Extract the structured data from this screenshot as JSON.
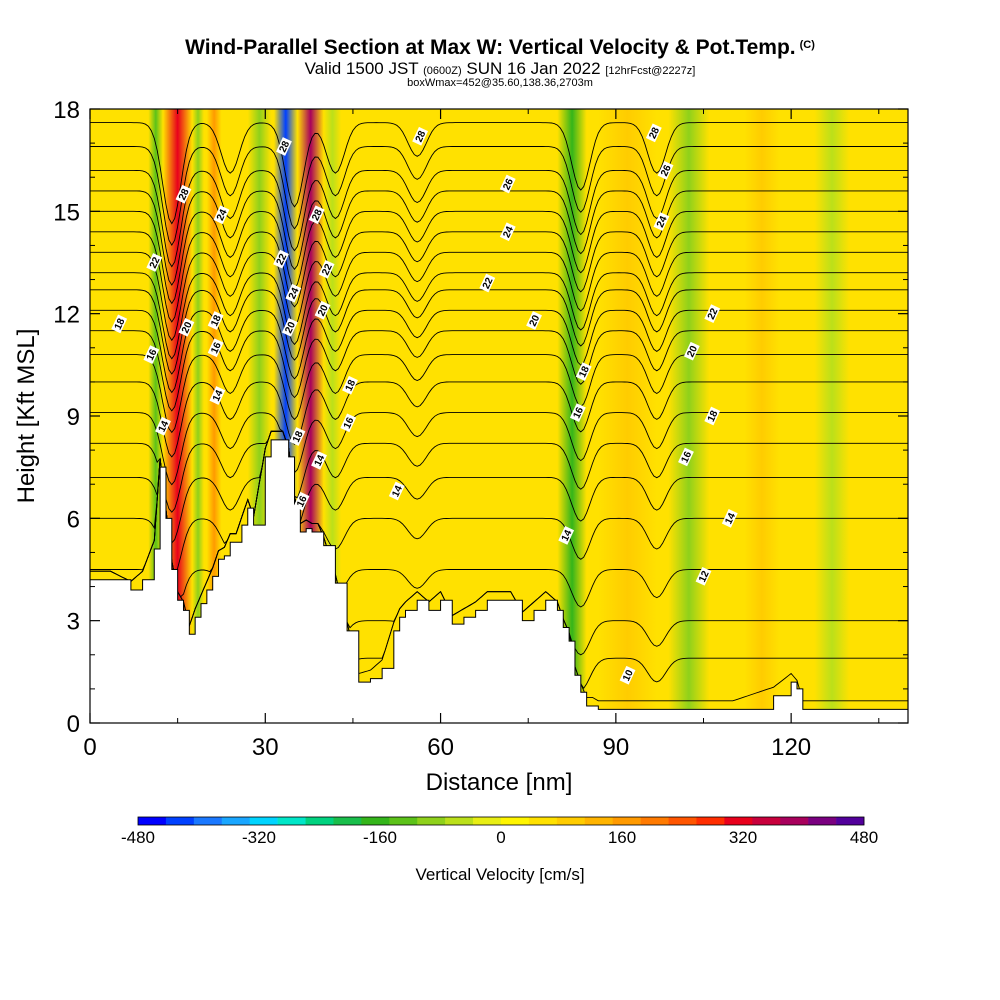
{
  "title": {
    "main": "Wind-Parallel Section at Max W: Vertical Velocity & Pot.Temp.",
    "copyright": "(C)",
    "line2_a": "Valid 1500 JST",
    "line2_b": "(0600Z)",
    "line2_c": "SUN 16 Jan 2022",
    "line2_d": "[12hrFcst@2227z]",
    "line3": "boxWmax=452@35.60,138.36,2703m"
  },
  "chart_data": {
    "type": "heatmap",
    "xlabel": "Distance [nm]",
    "ylabel": "Height [Kft MSL]",
    "xlim": [
      0,
      140
    ],
    "ylim": [
      0,
      18
    ],
    "x_ticks": [
      0,
      30,
      60,
      90,
      120
    ],
    "y_ticks": [
      0,
      3,
      6,
      9,
      12,
      15,
      18
    ],
    "colorbar": {
      "label": "Vertical Velocity [cm/s]",
      "min": -480,
      "max": 480,
      "step": 40,
      "tick_labels": [
        -480,
        -320,
        -160,
        0,
        160,
        320,
        480
      ],
      "colors": [
        "#0000ff",
        "#0040ff",
        "#1a78ff",
        "#19a6ff",
        "#00d4ff",
        "#00e6c8",
        "#00d27f",
        "#19be4b",
        "#34b51a",
        "#5cc219",
        "#8fd11b",
        "#bbe01a",
        "#e8ee14",
        "#fff500",
        "#ffe100",
        "#ffcc00",
        "#ffb400",
        "#ff9a00",
        "#ff7a00",
        "#ff5500",
        "#ff2d00",
        "#e8001c",
        "#c8003c",
        "#a8005c",
        "#7a0080",
        "#52009b"
      ]
    },
    "vertical_velocity_bands": [
      {
        "x_range": [
          10,
          12.5
        ],
        "w_cm_s": -120
      },
      {
        "x_range": [
          12.5,
          17.5
        ],
        "w_cm_s": 320
      },
      {
        "x_range": [
          17.5,
          19.5
        ],
        "w_cm_s": -100
      },
      {
        "x_range": [
          20,
          22.5
        ],
        "w_cm_s": 180
      },
      {
        "x_range": [
          27,
          31
        ],
        "w_cm_s": -100
      },
      {
        "x_range": [
          31.5,
          35.5
        ],
        "w_cm_s": -440
      },
      {
        "x_range": [
          35.5,
          40
        ],
        "w_cm_s": 380
      },
      {
        "x_range": [
          40,
          43
        ],
        "w_cm_s": -60
      },
      {
        "x_range": [
          80,
          85
        ],
        "w_cm_s": -150
      },
      {
        "x_range": [
          87,
          97
        ],
        "w_cm_s": 100
      },
      {
        "x_range": [
          99,
          106
        ],
        "w_cm_s": -80
      },
      {
        "x_range": [
          112,
          118
        ],
        "w_cm_s": 80
      },
      {
        "x_range": [
          124,
          130
        ],
        "w_cm_s": -40
      }
    ],
    "terrain_kft": {
      "x": [
        0,
        3.5,
        7,
        9,
        11,
        12,
        13,
        14,
        15,
        16,
        17,
        18,
        19,
        20,
        21,
        22,
        23,
        24,
        25,
        26,
        27,
        28,
        30,
        31,
        32,
        33,
        34,
        35,
        36,
        37,
        38,
        39,
        40,
        42,
        44,
        46,
        48,
        50,
        52,
        53,
        54,
        56,
        58,
        60,
        62,
        64,
        66,
        68,
        70,
        72,
        74,
        76,
        78,
        80,
        81,
        82,
        83,
        84,
        85,
        86,
        87,
        88,
        89,
        90,
        94,
        100,
        110,
        117,
        120,
        121,
        122,
        126,
        130,
        135,
        140
      ],
      "y": [
        4.2,
        4.2,
        3.9,
        4.2,
        5.1,
        7.5,
        6.0,
        4.5,
        3.6,
        3.3,
        2.6,
        3.1,
        3.5,
        3.9,
        4.3,
        4.8,
        4.9,
        5.3,
        5.3,
        5.8,
        6.3,
        5.8,
        7.8,
        8.3,
        8.3,
        8.3,
        7.8,
        6.4,
        5.6,
        5.7,
        5.6,
        5.6,
        5.2,
        4.1,
        2.7,
        1.2,
        1.3,
        1.6,
        2.7,
        3.1,
        3.3,
        3.6,
        3.3,
        3.6,
        2.9,
        3.1,
        3.3,
        3.6,
        3.6,
        3.6,
        3.0,
        3.3,
        3.6,
        3.3,
        2.8,
        2.4,
        1.4,
        0.9,
        0.5,
        0.5,
        0.4,
        0.4,
        0.4,
        0.4,
        0.4,
        0.4,
        0.4,
        0.8,
        1.2,
        1.0,
        0.4,
        0.4,
        0.4,
        0.4,
        0.4
      ]
    },
    "theta_contours": {
      "levels": [
        10,
        11,
        12,
        13,
        14,
        15,
        16,
        17,
        18,
        19,
        20,
        21,
        22,
        23,
        24,
        25,
        26,
        27,
        28,
        29,
        30
      ],
      "level_height_kft": [
        0.6,
        1.9,
        3.0,
        4.5,
        6.0,
        7.2,
        8.2,
        9.1,
        10.0,
        10.8,
        11.5,
        12.1,
        12.7,
        13.2,
        13.8,
        14.4,
        15.0,
        15.6,
        16.2,
        16.9,
        17.6
      ],
      "wave_centers_nm": [
        14,
        24,
        35,
        42,
        56,
        84,
        97
      ],
      "wave_amplitudes_kft": [
        3.0,
        1.5,
        2.5,
        1.5,
        1.0,
        2.0,
        1.5
      ],
      "labels": [
        {
          "text": "28",
          "x": 16,
          "y": 15.5
        },
        {
          "text": "24",
          "x": 22.5,
          "y": 14.9
        },
        {
          "text": "22",
          "x": 11,
          "y": 13.5
        },
        {
          "text": "18",
          "x": 5,
          "y": 11.7
        },
        {
          "text": "20",
          "x": 16.5,
          "y": 11.6
        },
        {
          "text": "18",
          "x": 21.5,
          "y": 11.8
        },
        {
          "text": "16",
          "x": 10.5,
          "y": 10.8
        },
        {
          "text": "16",
          "x": 21.5,
          "y": 11.0
        },
        {
          "text": "14",
          "x": 21.8,
          "y": 9.6
        },
        {
          "text": "14",
          "x": 12.5,
          "y": 8.7
        },
        {
          "text": "28",
          "x": 33.2,
          "y": 16.9
        },
        {
          "text": "22",
          "x": 32.7,
          "y": 13.6
        },
        {
          "text": "24",
          "x": 34.8,
          "y": 12.6
        },
        {
          "text": "20",
          "x": 34.2,
          "y": 11.6
        },
        {
          "text": "18",
          "x": 35.5,
          "y": 8.4
        },
        {
          "text": "16",
          "x": 36.2,
          "y": 6.5
        },
        {
          "text": "28",
          "x": 38.8,
          "y": 14.9
        },
        {
          "text": "22",
          "x": 40.5,
          "y": 13.3
        },
        {
          "text": "20",
          "x": 39.8,
          "y": 12.1
        },
        {
          "text": "18",
          "x": 44.5,
          "y": 9.9
        },
        {
          "text": "16",
          "x": 44.2,
          "y": 8.8
        },
        {
          "text": "14",
          "x": 39.2,
          "y": 7.7
        },
        {
          "text": "14",
          "x": 52.5,
          "y": 6.8
        },
        {
          "text": "28",
          "x": 56.5,
          "y": 17.2
        },
        {
          "text": "26",
          "x": 71.5,
          "y": 15.8
        },
        {
          "text": "24",
          "x": 71.5,
          "y": 14.4
        },
        {
          "text": "22",
          "x": 68,
          "y": 12.9
        },
        {
          "text": "20",
          "x": 76,
          "y": 11.8
        },
        {
          "text": "18",
          "x": 84.5,
          "y": 10.3
        },
        {
          "text": "16",
          "x": 83.5,
          "y": 9.1
        },
        {
          "text": "14",
          "x": 81.5,
          "y": 5.5
        },
        {
          "text": "28",
          "x": 96.5,
          "y": 17.3
        },
        {
          "text": "26",
          "x": 98.5,
          "y": 16.2
        },
        {
          "text": "24",
          "x": 97.8,
          "y": 14.7
        },
        {
          "text": "22",
          "x": 106.5,
          "y": 12.0
        },
        {
          "text": "20",
          "x": 103,
          "y": 10.9
        },
        {
          "text": "18",
          "x": 106.5,
          "y": 9.0
        },
        {
          "text": "16",
          "x": 102,
          "y": 7.8
        },
        {
          "text": "14",
          "x": 109.5,
          "y": 6.0
        },
        {
          "text": "12",
          "x": 105,
          "y": 4.3
        },
        {
          "text": "10",
          "x": 92,
          "y": 1.4
        }
      ]
    }
  }
}
